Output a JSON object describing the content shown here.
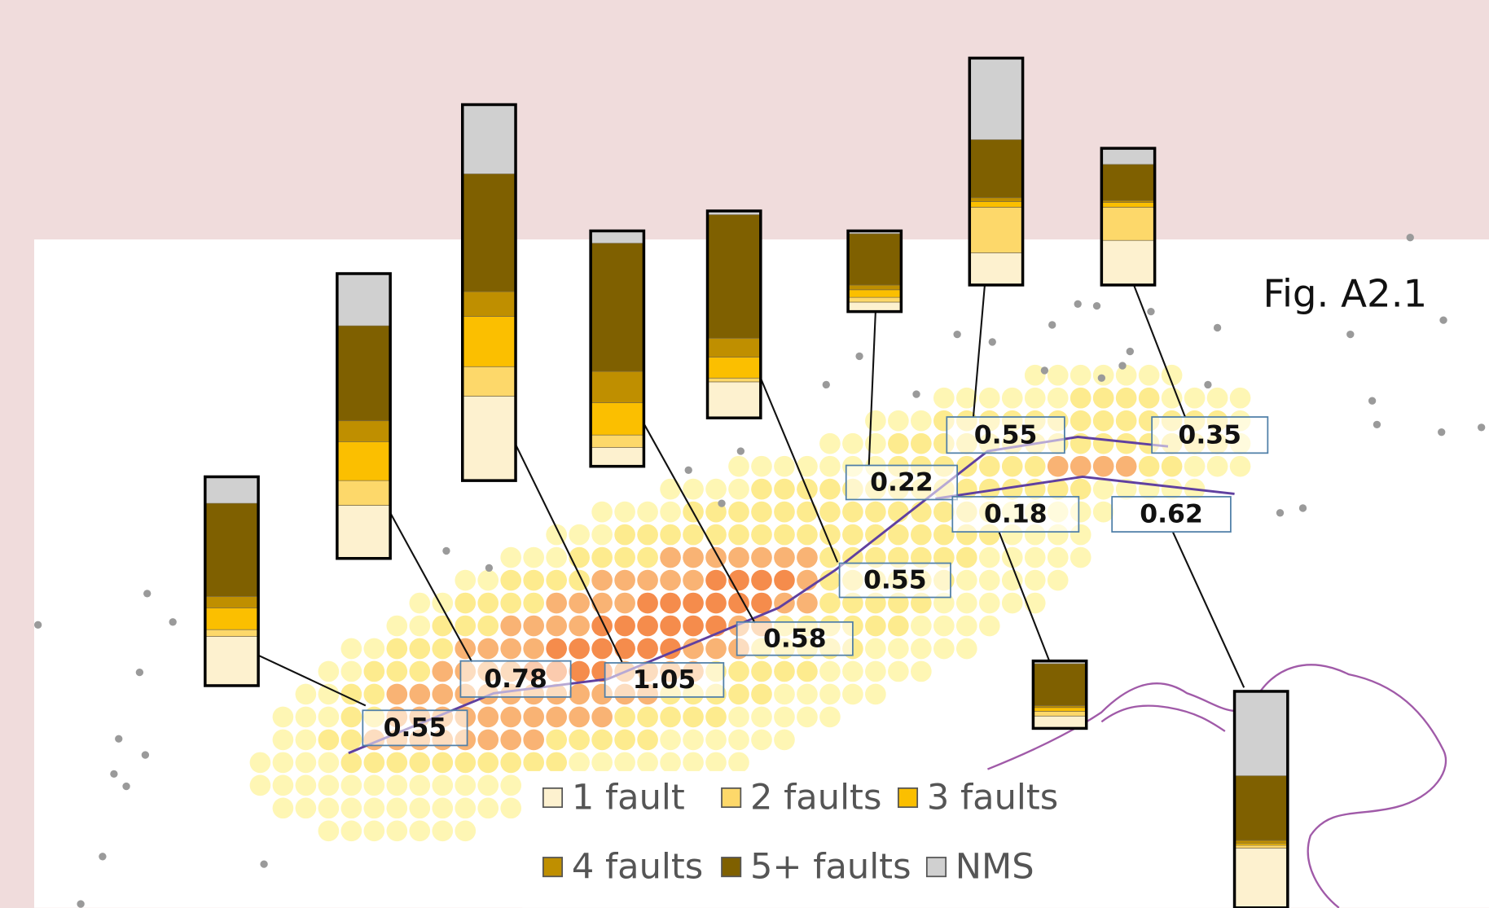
{
  "figure_label": "Fig. A2.1",
  "legend": [
    {
      "label": "1 fault",
      "color": "#fdf1cf"
    },
    {
      "label": "2 faults",
      "color": "#fdd86a"
    },
    {
      "label": "3 faults",
      "color": "#fbbf00"
    },
    {
      "label": "4 faults",
      "color": "#bf8f00"
    },
    {
      "label": "5+ faults",
      "color": "#7f6000"
    },
    {
      "label": "NMS",
      "color": "#d0d0d0"
    }
  ],
  "sites": [
    {
      "value": 0.55,
      "segments": [
        52,
        7,
        23,
        12,
        98,
        28
      ]
    },
    {
      "value": 0.78,
      "segments": [
        56,
        26,
        41,
        22,
        100,
        55
      ]
    },
    {
      "value": 1.05,
      "segments": [
        89,
        31,
        53,
        26,
        124,
        73
      ]
    },
    {
      "value": 0.58,
      "segments": [
        20,
        13,
        34,
        33,
        135,
        13
      ]
    },
    {
      "value": 0.55,
      "segments": [
        38,
        4,
        22,
        20,
        130,
        4
      ]
    },
    {
      "value": 0.22,
      "segments": [
        10,
        5,
        8,
        5,
        54,
        3
      ]
    },
    {
      "value": 0.55,
      "segments": [
        34,
        48,
        6,
        4,
        61,
        86
      ]
    },
    {
      "value": 0.35,
      "segments": [
        47,
        35,
        5,
        2,
        38,
        17
      ]
    },
    {
      "value": 0.18,
      "segments": [
        13,
        5,
        4,
        2,
        44,
        3
      ]
    },
    {
      "value": 0.62,
      "segments": [
        63,
        3,
        2,
        3,
        68,
        89
      ]
    }
  ]
}
